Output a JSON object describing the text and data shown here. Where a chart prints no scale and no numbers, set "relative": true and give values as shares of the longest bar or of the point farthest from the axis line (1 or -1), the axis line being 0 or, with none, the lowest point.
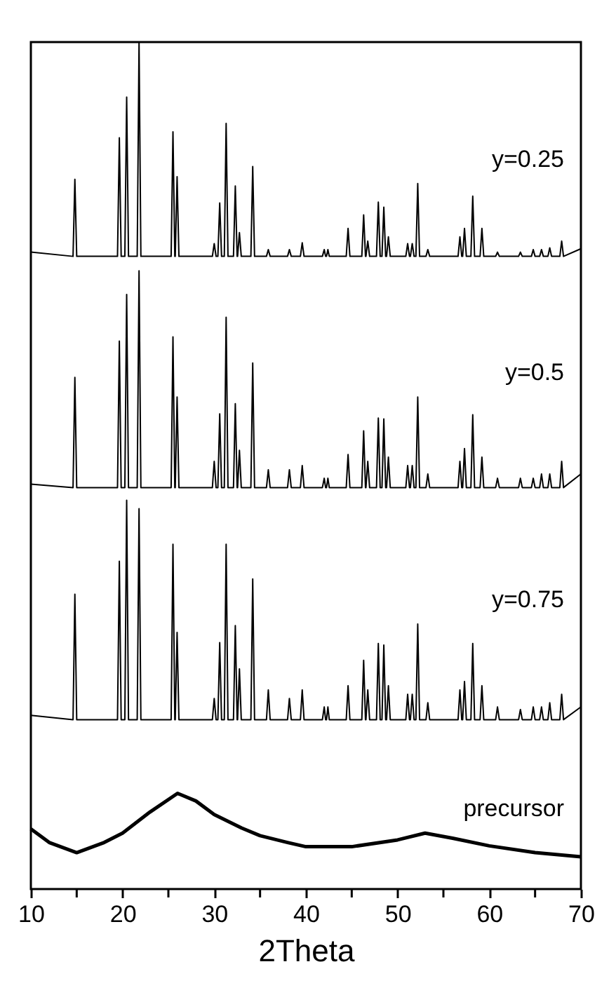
{
  "chart_data": {
    "type": "line",
    "xlabel": "2Theta",
    "relative": true,
    "xlim": [
      10,
      70
    ],
    "xticks": [
      10,
      {
        "value": 15,
        "label": null
      },
      20,
      {
        "value": 25,
        "label": null
      },
      30,
      {
        "value": 35,
        "label": null
      },
      40,
      {
        "value": 45,
        "label": null
      },
      50,
      {
        "value": 55,
        "label": null
      },
      60,
      {
        "value": 65,
        "label": null
      },
      70
    ],
    "x": [
      10,
      14.6,
      14.8,
      15,
      19.45,
      19.65,
      19.85,
      20.25,
      20.45,
      20.65,
      21.6,
      21.8,
      22,
      25.3,
      25.5,
      25.7,
      25.75,
      25.95,
      26.15,
      29.8,
      30,
      30.2,
      30.4,
      30.6,
      30.8,
      31.1,
      31.3,
      31.5,
      32.1,
      32.3,
      32.5,
      32.55,
      32.75,
      32.95,
      34,
      34.2,
      34.4,
      35.7,
      35.9,
      36.1,
      38,
      38.2,
      38.4,
      39.4,
      39.6,
      39.8,
      41.8,
      42,
      42.15,
      42.25,
      42.4,
      42.55,
      44.4,
      44.6,
      44.8,
      46.1,
      46.3,
      46.5,
      46.55,
      46.75,
      46.95,
      47.7,
      47.9,
      48.1,
      48.3,
      48.5,
      48.7,
      48.8,
      49,
      49.2,
      50.9,
      51.1,
      51.3,
      51.4,
      51.6,
      51.8,
      52,
      52.2,
      52.4,
      53.1,
      53.3,
      53.5,
      56.6,
      56.8,
      57,
      57.1,
      57.3,
      57.5,
      58,
      58.2,
      58.4,
      59,
      59.2,
      59.4,
      60.7,
      60.9,
      61.1,
      63.2,
      63.4,
      63.6,
      64.6,
      64.8,
      65,
      65.5,
      65.7,
      65.9,
      66.4,
      66.6,
      66.8,
      67.7,
      67.9,
      68.1,
      70
    ],
    "series": [
      {
        "name": "y=0.25",
        "color": "#000000",
        "values": [
          0.752,
          0.747,
          0.838,
          0.747,
          0.747,
          0.887,
          0.747,
          0.747,
          0.935,
          0.747,
          0.747,
          1.0,
          0.747,
          0.747,
          0.894,
          0.747,
          0.747,
          0.841,
          0.747,
          0.747,
          0.762,
          0.747,
          0.747,
          0.81,
          0.747,
          0.747,
          0.904,
          0.747,
          0.747,
          0.83,
          0.747,
          0.747,
          0.775,
          0.747,
          0.747,
          0.853,
          0.747,
          0.747,
          0.755,
          0.747,
          0.747,
          0.755,
          0.747,
          0.747,
          0.763,
          0.747,
          0.747,
          0.755,
          0.747,
          0.747,
          0.755,
          0.747,
          0.747,
          0.78,
          0.747,
          0.747,
          0.796,
          0.747,
          0.747,
          0.765,
          0.747,
          0.747,
          0.811,
          0.747,
          0.747,
          0.805,
          0.747,
          0.747,
          0.77,
          0.747,
          0.747,
          0.762,
          0.747,
          0.747,
          0.762,
          0.747,
          0.747,
          0.833,
          0.747,
          0.747,
          0.755,
          0.747,
          0.747,
          0.77,
          0.747,
          0.747,
          0.78,
          0.747,
          0.747,
          0.818,
          0.747,
          0.747,
          0.78,
          0.747,
          0.747,
          0.752,
          0.747,
          0.747,
          0.752,
          0.747,
          0.747,
          0.755,
          0.747,
          0.747,
          0.755,
          0.747,
          0.747,
          0.757,
          0.747,
          0.747,
          0.765,
          0.747,
          0.756
        ]
      },
      {
        "name": "y=0.5",
        "color": "#000000",
        "values": [
          0.478,
          0.474,
          0.604,
          0.474,
          0.474,
          0.647,
          0.474,
          0.474,
          0.702,
          0.474,
          0.474,
          0.73,
          0.474,
          0.474,
          0.652,
          0.474,
          0.474,
          0.581,
          0.474,
          0.474,
          0.505,
          0.474,
          0.474,
          0.561,
          0.474,
          0.474,
          0.675,
          0.474,
          0.474,
          0.573,
          0.474,
          0.474,
          0.518,
          0.474,
          0.474,
          0.621,
          0.474,
          0.474,
          0.495,
          0.474,
          0.474,
          0.495,
          0.474,
          0.474,
          0.5,
          0.474,
          0.474,
          0.485,
          0.474,
          0.474,
          0.485,
          0.474,
          0.474,
          0.513,
          0.474,
          0.474,
          0.541,
          0.474,
          0.474,
          0.505,
          0.474,
          0.474,
          0.556,
          0.474,
          0.474,
          0.555,
          0.474,
          0.474,
          0.51,
          0.474,
          0.474,
          0.5,
          0.474,
          0.474,
          0.5,
          0.474,
          0.474,
          0.581,
          0.474,
          0.474,
          0.49,
          0.474,
          0.474,
          0.505,
          0.474,
          0.474,
          0.52,
          0.474,
          0.474,
          0.56,
          0.474,
          0.474,
          0.51,
          0.474,
          0.474,
          0.485,
          0.474,
          0.474,
          0.485,
          0.474,
          0.474,
          0.485,
          0.474,
          0.474,
          0.49,
          0.474,
          0.474,
          0.49,
          0.474,
          0.474,
          0.505,
          0.474,
          0.49
        ]
      },
      {
        "name": "y=0.75",
        "color": "#000000",
        "values": [
          0.205,
          0.2,
          0.348,
          0.2,
          0.2,
          0.387,
          0.2,
          0.2,
          0.459,
          0.2,
          0.2,
          0.449,
          0.2,
          0.2,
          0.407,
          0.2,
          0.2,
          0.303,
          0.2,
          0.2,
          0.225,
          0.2,
          0.2,
          0.291,
          0.2,
          0.2,
          0.407,
          0.2,
          0.2,
          0.311,
          0.2,
          0.2,
          0.26,
          0.2,
          0.2,
          0.366,
          0.2,
          0.2,
          0.235,
          0.2,
          0.2,
          0.225,
          0.2,
          0.2,
          0.235,
          0.2,
          0.2,
          0.215,
          0.2,
          0.2,
          0.215,
          0.2,
          0.2,
          0.24,
          0.2,
          0.2,
          0.27,
          0.2,
          0.2,
          0.235,
          0.2,
          0.2,
          0.29,
          0.2,
          0.2,
          0.288,
          0.2,
          0.2,
          0.24,
          0.2,
          0.2,
          0.23,
          0.2,
          0.2,
          0.23,
          0.2,
          0.2,
          0.313,
          0.2,
          0.2,
          0.22,
          0.2,
          0.2,
          0.235,
          0.2,
          0.2,
          0.245,
          0.2,
          0.2,
          0.29,
          0.2,
          0.2,
          0.24,
          0.2,
          0.2,
          0.215,
          0.2,
          0.2,
          0.212,
          0.2,
          0.2,
          0.215,
          0.2,
          0.2,
          0.215,
          0.2,
          0.2,
          0.22,
          0.2,
          0.2,
          0.23,
          0.2,
          0.215
        ]
      },
      {
        "name": "precursor",
        "color": "#000000",
        "x": [
          10,
          12,
          15,
          18,
          20,
          23,
          26,
          28,
          30,
          33,
          35,
          38,
          40,
          45,
          50,
          53,
          56,
          60,
          65,
          70
        ],
        "values": [
          0.071,
          0.055,
          0.043,
          0.055,
          0.066,
          0.091,
          0.113,
          0.104,
          0.088,
          0.072,
          0.063,
          0.055,
          0.05,
          0.05,
          0.058,
          0.066,
          0.06,
          0.051,
          0.043,
          0.038
        ]
      }
    ]
  }
}
